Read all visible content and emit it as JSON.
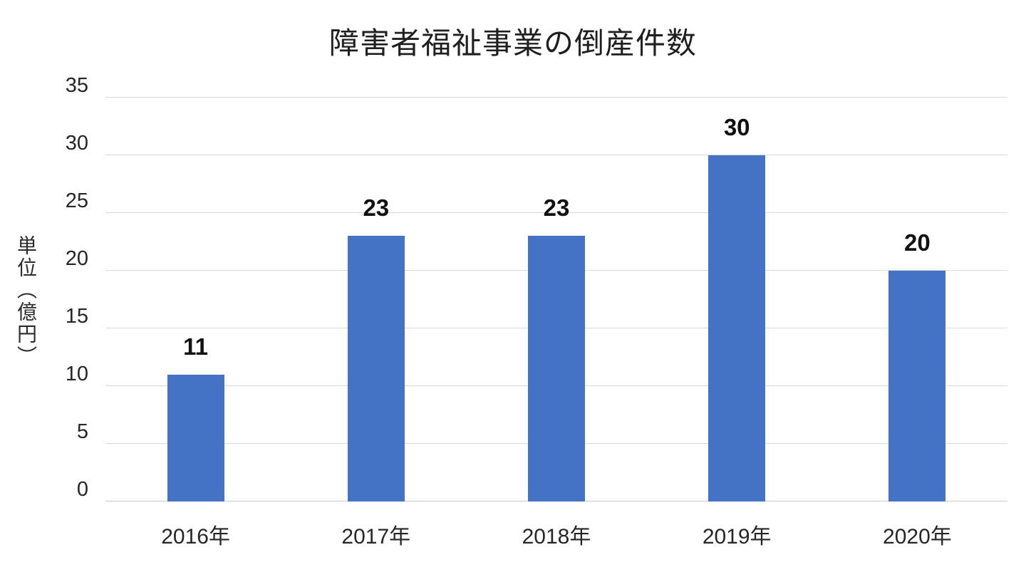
{
  "chart_data": {
    "type": "bar",
    "title": "障害者福祉事業の倒産件数",
    "ylabel": "単位（億円）",
    "xlabel": "",
    "categories": [
      "2016年",
      "2017年",
      "2018年",
      "2019年",
      "2020年"
    ],
    "values": [
      11,
      23,
      23,
      30,
      20
    ],
    "data_labels": [
      "11",
      "23",
      "23",
      "30",
      "20"
    ],
    "yticks": [
      0,
      5,
      10,
      15,
      20,
      25,
      30,
      35
    ],
    "ylim": [
      0,
      35
    ],
    "grid": "horizontal-only",
    "legend": "none",
    "colors": {
      "bar": "#4472c4",
      "gridline": "#d9d9d9",
      "axis_line": "#c9c9c9",
      "title_text": "#1f1f1f",
      "tick_text": "#262626",
      "data_label_text": "#111111"
    }
  }
}
